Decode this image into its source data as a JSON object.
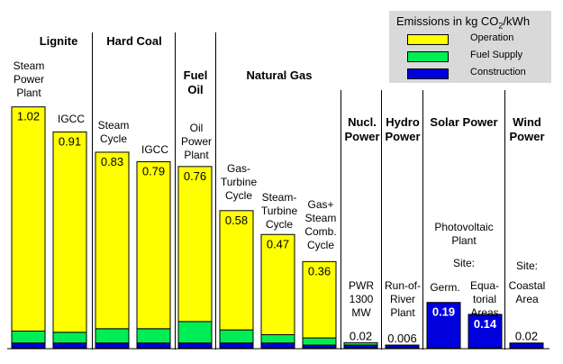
{
  "legend": {
    "title_prefix": "Emissions in kg CO",
    "title_sub": "2",
    "title_suffix": "/kWh",
    "items": [
      {
        "label": "Operation",
        "color": "#ffff00"
      },
      {
        "label": "Fuel Supply",
        "color": "#00ee55"
      },
      {
        "label": "Construction",
        "color": "#0000dd"
      }
    ]
  },
  "groups": [
    "Lignite",
    "Hard Coal",
    "Fuel Oil",
    "Natural Gas",
    "Nucl. Power",
    "Hydro Power",
    "Solar Power",
    "Wind Power"
  ],
  "chart_data": {
    "type": "bar",
    "stacked": true,
    "unit": "kg CO2/kWh",
    "categories": [
      "Steam Power Plant",
      "IGCC",
      "Steam Cycle",
      "IGCC",
      "Oil Power Plant",
      "Gas-Turbine Cycle",
      "Steam-Turbine Cycle",
      "Gas+ Steam Comb. Cycle",
      "PWR 1300 MW",
      "Run-of-River Plant",
      "Germ.",
      "Equatorial Areas",
      "Coastal Area"
    ],
    "totals": [
      "1.02",
      "0.91",
      "0.83",
      "0.79",
      "0.76",
      "0.58",
      "0.47",
      "0.36",
      "0.02",
      "0.006",
      "0.19",
      "0.14",
      "0.02"
    ],
    "series": [
      {
        "name": "Operation",
        "values": [
          0.94,
          0.84,
          0.74,
          0.7,
          0.65,
          0.5,
          0.42,
          0.32,
          0.0,
          0.0,
          0.0,
          0.0,
          0.0
        ]
      },
      {
        "name": "Fuel Supply",
        "values": [
          0.05,
          0.045,
          0.06,
          0.06,
          0.09,
          0.055,
          0.035,
          0.03,
          0.01,
          0.0,
          0.0,
          0.0,
          0.0
        ]
      },
      {
        "name": "Construction",
        "values": [
          0.02,
          0.02,
          0.02,
          0.02,
          0.02,
          0.02,
          0.02,
          0.01,
          0.01,
          0.006,
          0.19,
          0.14,
          0.02
        ]
      }
    ]
  },
  "bar_captions": [
    "Steam Power Plant",
    "IGCC",
    "Steam Cycle",
    "IGCC",
    "Oil Power Plant",
    "Gas- Turbine Cycle",
    "Steam- Turbine Cycle",
    "Gas+ Steam Comb. Cycle",
    "PWR 1300 MW",
    "Run-of- River Plant",
    "Germ.",
    "Equa- torial Areas",
    "Coastal Area"
  ],
  "extra_labels": {
    "photovoltaic": "Photovoltaic Plant",
    "site_solar": "Site:",
    "site_wind": "Site:"
  }
}
